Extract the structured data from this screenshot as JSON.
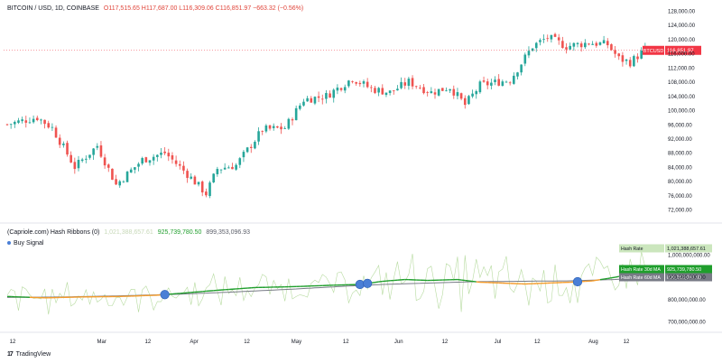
{
  "header": {
    "symbol": "BITCOIN / USD, 1D, COINBASE",
    "quote": "O117,515.65 H117,687.00 L116,309.06 C116,851.97 −663.32 (−0.56%)"
  },
  "indicator": {
    "title": "(Capriole.com) Hash Ribbons (0)",
    "value_raw": "1,021,388,657.61",
    "value_30d": "925,739,780.50",
    "value_60d": "899,353,096.93",
    "legend_buy": "Buy Signal"
  },
  "brand": {
    "logo": "17",
    "name": "TradingView"
  },
  "colors": {
    "up": "#26a69a",
    "down": "#ef5350",
    "ma30": "#1f9e2c",
    "ma60": "#787b86",
    "ma30_below": "#f59b2a",
    "raw": "#b7dba0",
    "buy": "#4a7fd6",
    "price_tag": "#f23645"
  },
  "chart_data": [
    {
      "type": "candlestick",
      "title": "BITCOIN / USD, 1D, COINBASE",
      "series_name": "BTCUSD",
      "last_price": 116851.97,
      "last_price_label": "BTCUSD",
      "last_price_text": "116,851.97",
      "y_axis_labels": [
        "128,000.00",
        "124,000.00",
        "120,000.00",
        "116,000.00",
        "112,000.00",
        "108,000.00",
        "104,000.00",
        "100,000.00",
        "96,000.00",
        "92,000.00",
        "88,000.00",
        "84,000.00",
        "80,000.00",
        "76,000.00",
        "72,000.00"
      ],
      "ylim": [
        70000,
        129000
      ],
      "x_tick_labels": [
        "12",
        "Mar",
        "12",
        "Apr",
        "12",
        "May",
        "12",
        "Jun",
        "12",
        "Jul",
        "12",
        "Aug",
        "12"
      ],
      "anchors": [
        {
          "day": 0,
          "price": 96000
        },
        {
          "day": 8,
          "price": 98000
        },
        {
          "day": 12,
          "price": 95000
        },
        {
          "day": 18,
          "price": 84000
        },
        {
          "day": 24,
          "price": 90000
        },
        {
          "day": 29,
          "price": 79000
        },
        {
          "day": 36,
          "price": 86000
        },
        {
          "day": 42,
          "price": 88000
        },
        {
          "day": 48,
          "price": 82000
        },
        {
          "day": 53,
          "price": 76500
        },
        {
          "day": 56,
          "price": 83500
        },
        {
          "day": 61,
          "price": 84500
        },
        {
          "day": 68,
          "price": 94500
        },
        {
          "day": 74,
          "price": 95000
        },
        {
          "day": 79,
          "price": 103000
        },
        {
          "day": 85,
          "price": 104000
        },
        {
          "day": 92,
          "price": 109000
        },
        {
          "day": 97,
          "price": 106000
        },
        {
          "day": 102,
          "price": 105000
        },
        {
          "day": 107,
          "price": 108000
        },
        {
          "day": 113,
          "price": 105000
        },
        {
          "day": 118,
          "price": 106500
        },
        {
          "day": 122,
          "price": 101500
        },
        {
          "day": 126,
          "price": 107000
        },
        {
          "day": 131,
          "price": 108000
        },
        {
          "day": 134,
          "price": 108500
        },
        {
          "day": 140,
          "price": 118000
        },
        {
          "day": 144,
          "price": 120500
        },
        {
          "day": 149,
          "price": 118000
        },
        {
          "day": 155,
          "price": 119000
        },
        {
          "day": 160,
          "price": 118500
        },
        {
          "day": 163,
          "price": 114500
        },
        {
          "day": 166,
          "price": 113500
        },
        {
          "day": 170,
          "price": 117000
        }
      ]
    },
    {
      "type": "line",
      "title": "(Capriole.com) Hash Ribbons (0)",
      "series": [
        {
          "name": "Hash Rate",
          "last": 1021388657.61,
          "label": "Hash Rate",
          "value_text": "1,021,388,657.61"
        },
        {
          "name": "Hash Rate 30d MA",
          "last": 925739780.5,
          "label": "Hash Rate 30d MA",
          "value_text": "925,739,780.50"
        },
        {
          "name": "Hash Rate 60d MA",
          "last": 899353096.93,
          "label": "Hash Rate 60d MA",
          "value_text": "899,353,096.93"
        }
      ],
      "y_axis_labels": [
        "1,000,000,000.00",
        "900,000,000.00",
        "800,000,000.00",
        "700,000,000.00"
      ],
      "ylim": [
        660000000,
        1080000000
      ],
      "ma30_anchors": [
        {
          "day": 0,
          "v": 812000000
        },
        {
          "day": 10,
          "v": 806000000
        },
        {
          "day": 20,
          "v": 810000000
        },
        {
          "day": 30,
          "v": 812000000
        },
        {
          "day": 40,
          "v": 818000000
        },
        {
          "day": 46,
          "v": 826000000
        },
        {
          "day": 56,
          "v": 840000000
        },
        {
          "day": 66,
          "v": 852000000
        },
        {
          "day": 76,
          "v": 856000000
        },
        {
          "day": 86,
          "v": 862000000
        },
        {
          "day": 94,
          "v": 866000000
        },
        {
          "day": 100,
          "v": 880000000
        },
        {
          "day": 106,
          "v": 888000000
        },
        {
          "day": 112,
          "v": 884000000
        },
        {
          "day": 120,
          "v": 888000000
        },
        {
          "day": 126,
          "v": 876000000
        },
        {
          "day": 132,
          "v": 872000000
        },
        {
          "day": 138,
          "v": 868000000
        },
        {
          "day": 144,
          "v": 872000000
        },
        {
          "day": 150,
          "v": 876000000
        },
        {
          "day": 156,
          "v": 882000000
        },
        {
          "day": 162,
          "v": 898000000
        },
        {
          "day": 170,
          "v": 925000000
        }
      ],
      "ma60_anchors": [
        {
          "day": 0,
          "v": 808000000
        },
        {
          "day": 15,
          "v": 810000000
        },
        {
          "day": 30,
          "v": 815000000
        },
        {
          "day": 45,
          "v": 822000000
        },
        {
          "day": 60,
          "v": 832000000
        },
        {
          "day": 75,
          "v": 844000000
        },
        {
          "day": 90,
          "v": 858000000
        },
        {
          "day": 100,
          "v": 866000000
        },
        {
          "day": 112,
          "v": 872000000
        },
        {
          "day": 124,
          "v": 878000000
        },
        {
          "day": 136,
          "v": 880000000
        },
        {
          "day": 150,
          "v": 882000000
        },
        {
          "day": 162,
          "v": 888000000
        },
        {
          "day": 170,
          "v": 899000000
        }
      ],
      "buy_signals_days": [
        42,
        94,
        96,
        152
      ]
    }
  ]
}
